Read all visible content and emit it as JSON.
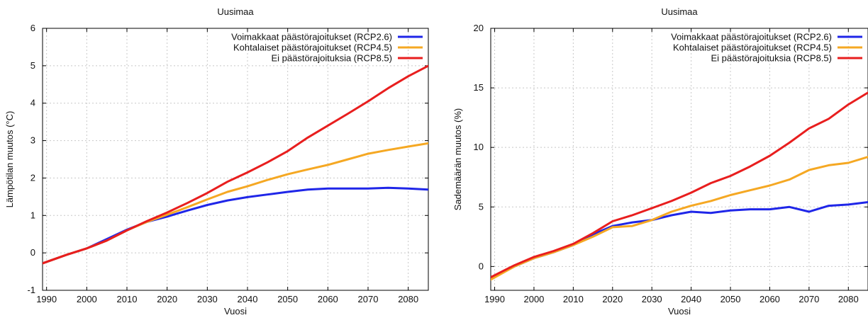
{
  "chart_data": [
    {
      "type": "line",
      "title": "Uusimaa",
      "xlabel": "Vuosi",
      "ylabel": "Lämpötilan muutos (°C)",
      "xlim": [
        1989,
        2085
      ],
      "ylim": [
        -1,
        6
      ],
      "xticks": [
        1990,
        2000,
        2010,
        2020,
        2030,
        2040,
        2050,
        2060,
        2070,
        2080
      ],
      "yticks": [
        -1,
        0,
        1,
        2,
        3,
        4,
        5,
        6
      ],
      "grid": true,
      "legend_position": "top-right",
      "x": [
        1989,
        1995,
        2000,
        2005,
        2010,
        2015,
        2020,
        2025,
        2030,
        2035,
        2040,
        2045,
        2050,
        2055,
        2060,
        2065,
        2070,
        2075,
        2080,
        2085
      ],
      "series": [
        {
          "name": "Voimakkaat päästörajoitukset (RCP2.6)",
          "color": "#1f26e8",
          "values": [
            -0.28,
            -0.05,
            0.12,
            0.37,
            0.62,
            0.83,
            0.97,
            1.13,
            1.28,
            1.4,
            1.49,
            1.56,
            1.63,
            1.69,
            1.72,
            1.72,
            1.72,
            1.74,
            1.72,
            1.69
          ]
        },
        {
          "name": "Kohtalaiset päästörajoitukset (RCP4.5)",
          "color": "#f5a823",
          "values": [
            -0.28,
            -0.05,
            0.12,
            0.33,
            0.6,
            0.83,
            1.02,
            1.22,
            1.43,
            1.63,
            1.78,
            1.95,
            2.1,
            2.23,
            2.35,
            2.5,
            2.65,
            2.75,
            2.84,
            2.93
          ]
        },
        {
          "name": "Ei päästörajoituksia (RCP8.5)",
          "color": "#e81e1e",
          "values": [
            -0.28,
            -0.05,
            0.12,
            0.33,
            0.6,
            0.85,
            1.08,
            1.33,
            1.6,
            1.9,
            2.15,
            2.42,
            2.72,
            3.08,
            3.4,
            3.72,
            4.05,
            4.4,
            4.72,
            5.0
          ]
        }
      ]
    },
    {
      "type": "line",
      "title": "Uusimaa",
      "xlabel": "Vuosi",
      "ylabel": "Sademäärän muutos (%)",
      "xlim": [
        1989,
        2085
      ],
      "ylim": [
        -2,
        20
      ],
      "xticks": [
        1990,
        2000,
        2010,
        2020,
        2030,
        2040,
        2050,
        2060,
        2070,
        2080
      ],
      "yticks": [
        0,
        5,
        10,
        15,
        20
      ],
      "grid": true,
      "legend_position": "top-right",
      "x": [
        1989,
        1995,
        2000,
        2005,
        2010,
        2015,
        2020,
        2025,
        2030,
        2035,
        2040,
        2045,
        2050,
        2055,
        2060,
        2065,
        2070,
        2075,
        2080,
        2085
      ],
      "series": [
        {
          "name": "Voimakkaat päästörajoitukset (RCP2.6)",
          "color": "#1f26e8",
          "values": [
            -1.0,
            0.0,
            0.7,
            1.2,
            1.8,
            2.7,
            3.4,
            3.7,
            3.9,
            4.3,
            4.6,
            4.5,
            4.7,
            4.8,
            4.8,
            5.0,
            4.6,
            5.1,
            5.2,
            5.4
          ]
        },
        {
          "name": "Kohtalaiset päästörajoitukset (RCP4.5)",
          "color": "#f5a823",
          "values": [
            -1.1,
            0.0,
            0.7,
            1.2,
            1.8,
            2.5,
            3.3,
            3.4,
            3.9,
            4.6,
            5.1,
            5.5,
            6.0,
            6.4,
            6.8,
            7.3,
            8.1,
            8.5,
            8.7,
            9.2
          ]
        },
        {
          "name": "Ei päästörajoituksia (RCP8.5)",
          "color": "#e81e1e",
          "values": [
            -0.9,
            0.1,
            0.8,
            1.3,
            1.9,
            2.8,
            3.8,
            4.3,
            4.9,
            5.5,
            6.2,
            7.0,
            7.6,
            8.4,
            9.3,
            10.4,
            11.6,
            12.4,
            13.6,
            14.6
          ]
        }
      ]
    }
  ]
}
